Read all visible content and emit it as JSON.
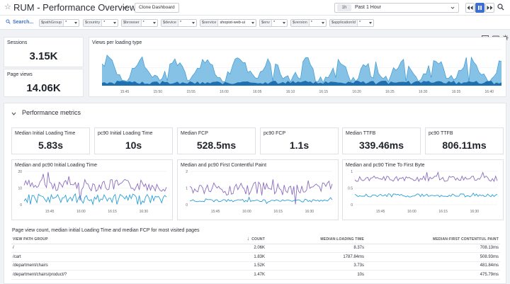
{
  "header": {
    "title": "RUM - Performance Overview",
    "clone_label": "Clone Dashboard",
    "timeframe_short": "1h",
    "timeframe_label": "Past 1 Hour"
  },
  "template_vars": {
    "search_label": "Search...",
    "items": [
      {
        "name": "$pathGroup",
        "value": "*"
      },
      {
        "name": "$country",
        "value": "*"
      },
      {
        "name": "$browser",
        "value": "*"
      },
      {
        "name": "$device",
        "value": "*"
      },
      {
        "name": "$service",
        "value": "shopist-web-ui"
      },
      {
        "name": "$env",
        "value": "*"
      },
      {
        "name": "$version",
        "value": "*"
      },
      {
        "name": "$applicationId",
        "value": "*"
      }
    ]
  },
  "sessions": {
    "title": "Sessions",
    "value": "3.15K"
  },
  "page_views": {
    "title": "Page views",
    "value": "14.06K"
  },
  "views_chart": {
    "title": "Views per loading type",
    "x_labels": [
      "15:45",
      "15:50",
      "15:55",
      "16:00",
      "16:05",
      "16:10",
      "16:15",
      "16:20",
      "16:25",
      "16:30",
      "16:35",
      "16:40"
    ],
    "colors": {
      "area": "#86c1e6",
      "area_line": "#3d9ad3",
      "dark": "#1d6fb0"
    }
  },
  "group": {
    "title": "Performance metrics"
  },
  "query_values": [
    {
      "title": "Median Initial Loading Time",
      "value": "5.83s"
    },
    {
      "title": "pc90 Initial Loading Time",
      "value": "10s"
    },
    {
      "title": "Median FCP",
      "value": "528.5ms"
    },
    {
      "title": "pc90 FCP",
      "value": "1.1s"
    },
    {
      "title": "Median TTFB",
      "value": "339.46ms"
    },
    {
      "title": "pc90 TTFB",
      "value": "806.11ms"
    }
  ],
  "timeseries": [
    {
      "title": "Median and pc90 Initial Loading Time",
      "y_labels": [
        "20",
        "10",
        "0"
      ],
      "x_labels": [
        "15:45",
        "16:00",
        "16:15",
        "16:30"
      ]
    },
    {
      "title": "Median and pc90 First Contentful Paint",
      "y_labels": [
        "2",
        "1",
        "0"
      ],
      "x_labels": [
        "15:45",
        "16:00",
        "16:15",
        "16:30"
      ]
    },
    {
      "title": "Median and pc90 Time To First Byte",
      "y_labels": [
        "1",
        "0.5",
        "0"
      ],
      "x_labels": [
        "15:45",
        "16:00",
        "16:15",
        "16:30"
      ]
    }
  ],
  "series_colors": {
    "pc90": "#8c6dbf",
    "median": "#2a9fd6"
  },
  "table": {
    "title": "Page view count, median initial Loading Time and median FCP for most visited pages",
    "columns": [
      "VIEW PATH GROUP",
      "COUNT",
      "MEDIAN:LOADING TIME",
      "MEDIAN:FIRST CONTENTFUL PAINT"
    ],
    "sort_arrow": "↓",
    "rows": [
      {
        "path": "/",
        "count": "2.06K",
        "loading": "8.37s",
        "fcp": "708.13ms"
      },
      {
        "path": "/cart",
        "count": "1.83K",
        "loading": "1787.84ms",
        "fcp": "508.93ms"
      },
      {
        "path": "/department/chairs",
        "count": "1.52K",
        "loading": "3.73s",
        "fcp": "481.84ms"
      },
      {
        "path": "/department/chairs/product/?",
        "count": "1.47K",
        "loading": "10s",
        "fcp": "475.79ms"
      }
    ]
  }
}
